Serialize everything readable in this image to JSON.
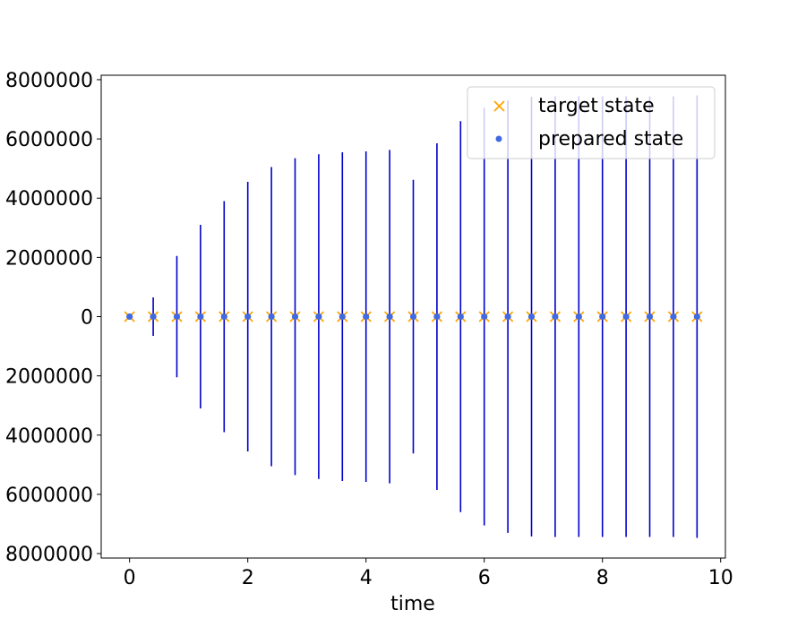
{
  "chart_data": {
    "type": "scatter",
    "title": "",
    "xlabel": "time",
    "ylabel": "",
    "xlim": [
      -0.48,
      10.08
    ],
    "ylim": [
      -8150000,
      8150000
    ],
    "x_ticks": [
      0,
      2,
      4,
      6,
      8,
      10
    ],
    "x_tick_labels": [
      "0",
      "2",
      "4",
      "6",
      "8",
      "10"
    ],
    "y_ticks": [
      -8000000,
      -6000000,
      -4000000,
      -2000000,
      0,
      2000000,
      4000000,
      6000000,
      8000000
    ],
    "y_tick_labels": [
      "8000000",
      "6000000",
      "4000000",
      "2000000",
      "0",
      "2000000",
      "4000000",
      "6000000",
      "8000000"
    ],
    "grid": false,
    "legend_position": "top-right",
    "x": [
      0,
      0.4,
      0.8,
      1.2,
      1.6,
      2.0,
      2.4,
      2.8,
      3.2,
      3.6,
      4.0,
      4.4,
      4.8,
      5.2,
      5.6,
      6.0,
      6.4,
      6.8,
      7.2,
      7.6,
      8.0,
      8.4,
      8.8,
      9.2,
      9.6
    ],
    "series": [
      {
        "name": "target state",
        "marker": "x",
        "color": "#ffa500",
        "values": [
          0,
          0,
          0,
          0,
          0,
          0,
          0,
          0,
          0,
          0,
          0,
          0,
          0,
          0,
          0,
          0,
          0,
          0,
          0,
          0,
          0,
          0,
          0,
          0,
          0
        ]
      },
      {
        "name": "prepared state",
        "marker": "o",
        "color": "#4169e1",
        "values": [
          0,
          0,
          0,
          0,
          0,
          0,
          0,
          0,
          0,
          0,
          0,
          0,
          0,
          0,
          0,
          0,
          0,
          0,
          0,
          0,
          0,
          0,
          0,
          0,
          0
        ],
        "error_color": "#0000cd",
        "errors": [
          0,
          650000,
          2050000,
          3100000,
          3900000,
          4550000,
          5050000,
          5350000,
          5480000,
          5550000,
          5580000,
          5630000,
          4620000,
          5850000,
          6600000,
          7050000,
          7300000,
          7420000,
          7440000,
          7440000,
          7440000,
          7440000,
          7440000,
          7440000,
          7470000
        ]
      }
    ]
  }
}
